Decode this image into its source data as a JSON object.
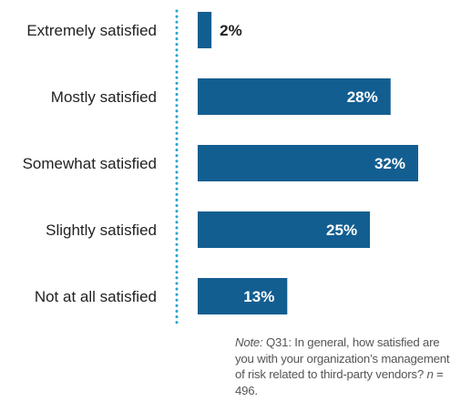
{
  "chart_data": {
    "type": "bar",
    "orientation": "horizontal",
    "categories": [
      "Extremely satisfied",
      "Mostly satisfied",
      "Somewhat satisfied",
      "Slightly satisfied",
      "Not at all satisfied"
    ],
    "values": [
      2,
      28,
      32,
      25,
      13
    ],
    "value_labels": [
      "2%",
      "28%",
      "32%",
      "25%",
      "13%"
    ],
    "xlim": [
      0,
      32
    ],
    "bar_color": "#135e91",
    "axis_line": "dotted",
    "axis_color": "#2aa1cf",
    "label_color": "#222222"
  },
  "note": {
    "label": "Note:",
    "text_before_n": " Q31: In general, how satisfied are you with your organization’s management of risk related to third-party vendors? ",
    "n_label": "n",
    "n_text": " = 496."
  }
}
